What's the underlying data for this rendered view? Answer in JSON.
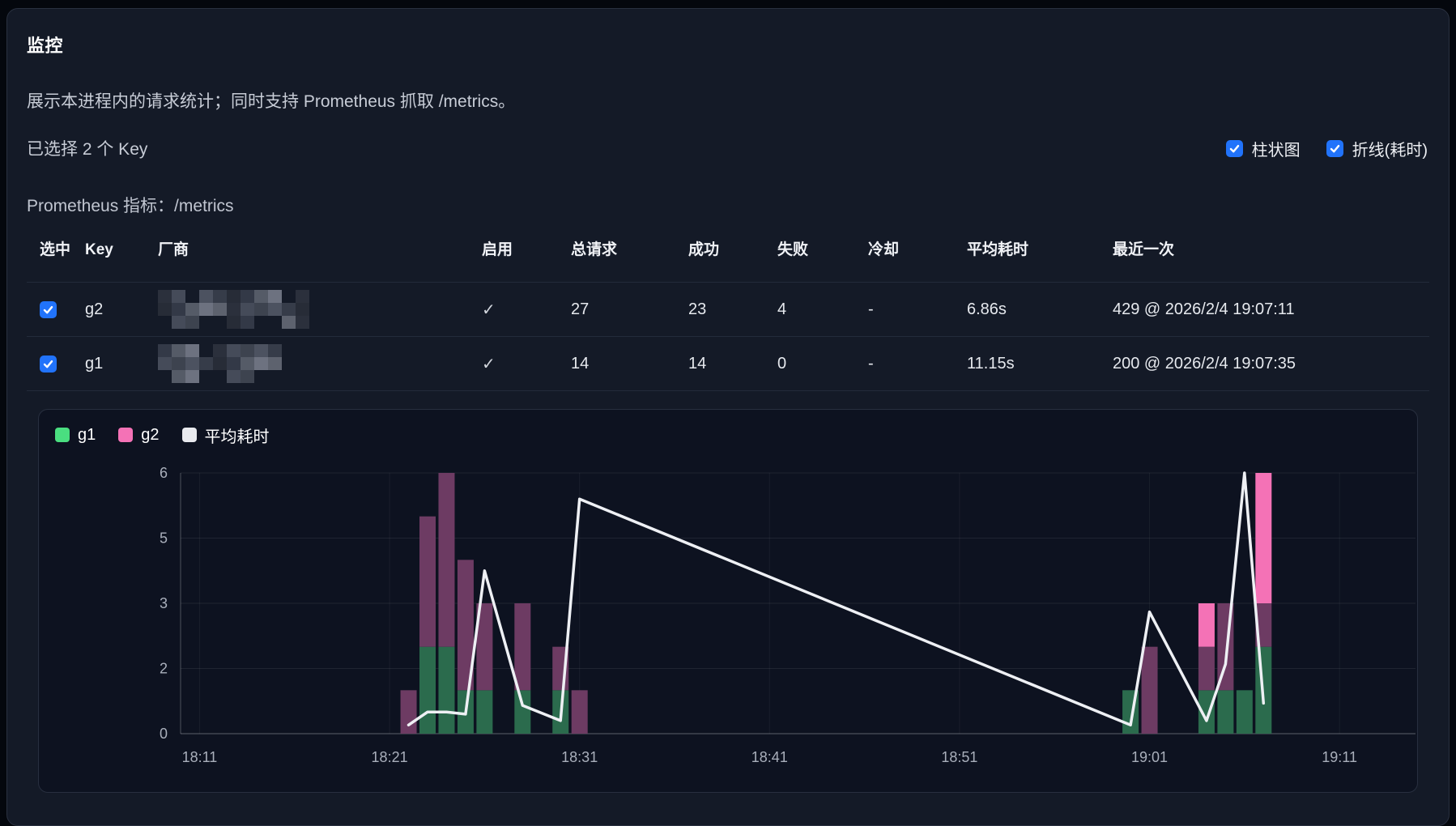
{
  "page": {
    "title": "监控",
    "description": "展示本进程内的请求统计；同时支持 Prometheus 抓取 /metrics。",
    "selected_summary": "已选择 2 个 Key",
    "prometheus_label": "Prometheus 指标：/metrics",
    "toggles": [
      {
        "label": "柱状图",
        "checked": true
      },
      {
        "label": "折线(耗时)",
        "checked": true
      }
    ],
    "accent_color": "#2173fb"
  },
  "table": {
    "columns": [
      "选中",
      "Key",
      "厂商",
      "启用",
      "总请求",
      "成功",
      "失败",
      "冷却",
      "平均耗时",
      "最近一次"
    ],
    "rows": [
      {
        "selected": true,
        "key": "g2",
        "vendor_redacted": true,
        "enabled": "✓",
        "total": "27",
        "success": "23",
        "failed": "4",
        "cooldown": "-",
        "avg_latency": "6.86s",
        "last": "429 @ 2026/2/4 19:07:11"
      },
      {
        "selected": true,
        "key": "g1",
        "vendor_redacted": true,
        "enabled": "✓",
        "total": "14",
        "success": "14",
        "failed": "0",
        "cooldown": "-",
        "avg_latency": "11.15s",
        "last": "200 @ 2026/2/4 19:07:35"
      }
    ]
  },
  "chart_data": {
    "type": "bar",
    "subtype": "stacked-bars-with-line",
    "title": "",
    "xlabel": "",
    "ylabel": "",
    "x_domain": [
      "18:10",
      "19:15"
    ],
    "x_ticks": [
      "18:11",
      "18:21",
      "18:31",
      "18:41",
      "18:51",
      "19:01",
      "19:11"
    ],
    "y_ticks": [
      {
        "label": "0",
        "value": 0
      },
      {
        "label": "2",
        "value": 1.5
      },
      {
        "label": "3",
        "value": 3
      },
      {
        "label": "5",
        "value": 4.5
      },
      {
        "label": "6",
        "value": 6
      }
    ],
    "ylim": [
      0,
      6
    ],
    "grid": true,
    "legend_position": "top-left",
    "legend": [
      {
        "label": "g1",
        "color": "#4ade80"
      },
      {
        "label": "g2",
        "color": "#f472b6"
      },
      {
        "label": "平均耗时",
        "color": "#e8e9ee"
      }
    ],
    "colors": {
      "g1_bar": "#2b6b4d",
      "g2_bar": "#6d3b63",
      "g2_bar_bright": "#f472b6",
      "line": "#eef0f4",
      "grid": "rgba(255,255,255,0.08)",
      "grid_vertical": "rgba(255,255,255,0.05)",
      "axis": "rgba(255,255,255,0.18)",
      "tick_label": "#a9afbb"
    },
    "bars": [
      {
        "time": "18:22",
        "g1": 0,
        "g2": 1,
        "g2_bright": 0
      },
      {
        "time": "18:23",
        "g1": 2,
        "g2": 3,
        "g2_bright": 0
      },
      {
        "time": "18:24",
        "g1": 2,
        "g2": 4,
        "g2_bright": 0
      },
      {
        "time": "18:25",
        "g1": 1,
        "g2": 3,
        "g2_bright": 0
      },
      {
        "time": "18:26",
        "g1": 1,
        "g2": 2,
        "g2_bright": 0
      },
      {
        "time": "18:28",
        "g1": 1,
        "g2": 2,
        "g2_bright": 0
      },
      {
        "time": "18:30",
        "g1": 1,
        "g2": 1,
        "g2_bright": 0
      },
      {
        "time": "18:31",
        "g1": 0,
        "g2": 1,
        "g2_bright": 0
      },
      {
        "time": "19:00",
        "g1": 1,
        "g2": 0,
        "g2_bright": 0
      },
      {
        "time": "19:01",
        "g1": 0,
        "g2": 2,
        "g2_bright": 0
      },
      {
        "time": "19:04",
        "g1": 1,
        "g2": 1,
        "g2_bright": 1
      },
      {
        "time": "19:05",
        "g1": 1,
        "g2": 2,
        "g2_bright": 0
      },
      {
        "time": "19:06",
        "g1": 1,
        "g2": 0,
        "g2_bright": 0
      },
      {
        "time": "19:07",
        "g1": 2,
        "g2": 1,
        "g2_bright": 3
      }
    ],
    "line_series": {
      "name": "平均耗时",
      "points": [
        {
          "time": "18:22",
          "value": 0.2
        },
        {
          "time": "18:23",
          "value": 0.5
        },
        {
          "time": "18:24",
          "value": 0.5
        },
        {
          "time": "18:25",
          "value": 0.45
        },
        {
          "time": "18:26",
          "value": 3.75
        },
        {
          "time": "18:28",
          "value": 0.65
        },
        {
          "time": "18:30",
          "value": 0.3
        },
        {
          "time": "18:31",
          "value": 5.4
        },
        {
          "time": "19:00",
          "value": 0.2
        },
        {
          "time": "19:01",
          "value": 2.8
        },
        {
          "time": "19:04",
          "value": 0.3
        },
        {
          "time": "19:05",
          "value": 1.6
        },
        {
          "time": "19:06",
          "value": 6.0
        },
        {
          "time": "19:07",
          "value": 0.7
        }
      ]
    }
  }
}
